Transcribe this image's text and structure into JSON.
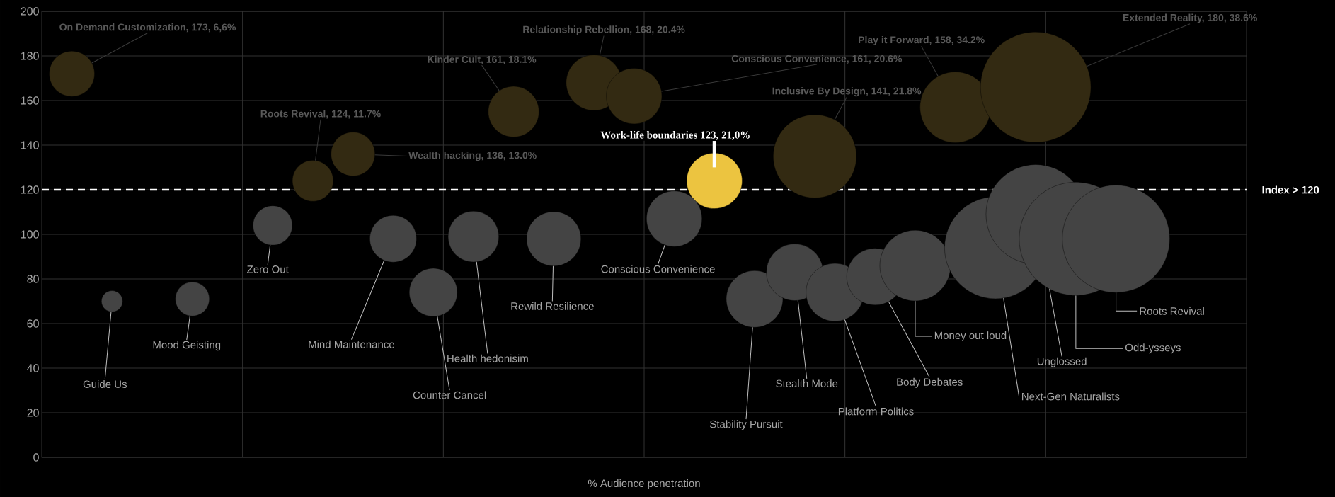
{
  "chart_data": {
    "type": "bubble",
    "xlabel": "% Audience penetration",
    "categories": [
      null,
      null,
      null,
      null,
      null,
      null,
      null,
      null,
      null,
      null,
      null,
      null,
      null,
      null,
      null,
      null,
      null,
      null,
      null,
      null,
      null,
      null,
      null,
      null,
      null,
      null,
      null,
      null,
      null,
      null,
      null,
      null,
      null,
      null,
      null,
      null,
      null,
      null,
      null,
      null,
      null,
      null,
      null,
      null,
      null,
      null,
      null,
      null,
      null,
      null,
      null,
      null,
      null,
      null,
      null,
      null,
      null,
      null,
      null,
      null
    ],
    "ylim": [
      0,
      200
    ],
    "yticks": [
      0,
      20,
      40,
      60,
      80,
      100,
      120,
      140,
      160,
      180,
      200
    ],
    "grid": true,
    "tick_labels": "y",
    "series": [
      {
        "color": "#332a12",
        "values": [
          null,
          172,
          null,
          null,
          null,
          null,
          null,
          null,
          null,
          null,
          null,
          null,
          null,
          124,
          null,
          136,
          null,
          null,
          null,
          null,
          null,
          null,
          null,
          155,
          null,
          null,
          null,
          168,
          null,
          162,
          null,
          null,
          null,
          null,
          null,
          null,
          null,
          null,
          135,
          null,
          null,
          null,
          null,
          null,
          null,
          157,
          null,
          null,
          null,
          166,
          null,
          null,
          null,
          null,
          null,
          null,
          null,
          null,
          null,
          null
        ],
        "sizes": [
          null,
          0.16,
          null,
          null,
          null,
          null,
          null,
          null,
          null,
          null,
          null,
          null,
          null,
          0.13,
          null,
          0.15,
          null,
          null,
          null,
          null,
          null,
          null,
          null,
          0.2,
          null,
          null,
          null,
          0.24,
          null,
          0.24,
          null,
          null,
          null,
          null,
          null,
          null,
          null,
          null,
          0.54,
          null,
          null,
          null,
          null,
          null,
          null,
          0.39,
          null,
          null,
          null,
          0.95,
          null,
          null,
          null,
          null,
          null,
          null,
          null,
          null,
          null,
          null
        ],
        "value_labels": [
          null,
          "On Demand Customization, 173, 6,6%",
          null,
          null,
          null,
          null,
          null,
          null,
          null,
          null,
          null,
          null,
          null,
          "Roots Revival, 124, 11.7%",
          null,
          "Wealth hacking, 136, 13.0%",
          null,
          null,
          null,
          null,
          null,
          null,
          null,
          "Kinder Cult, 161, 18.1%",
          null,
          null,
          null,
          "Relationship Rebellion, 168, 20.4%",
          null,
          "Conscious Convenience, 161, 20.6%",
          null,
          null,
          null,
          null,
          null,
          null,
          null,
          null,
          "Inclusive By Design, 141, 21.8%",
          null,
          null,
          null,
          null,
          null,
          null,
          "Play it Forward, 158, 34.2%",
          null,
          null,
          null,
          "Extended Reality, 180, 38.6%",
          null,
          null,
          null,
          null,
          null,
          null,
          null,
          null,
          null,
          null
        ]
      },
      {
        "color": "#ecc440",
        "values": [
          null,
          null,
          null,
          null,
          null,
          null,
          null,
          null,
          null,
          null,
          null,
          null,
          null,
          null,
          null,
          null,
          null,
          null,
          null,
          null,
          null,
          null,
          null,
          null,
          null,
          null,
          null,
          null,
          null,
          null,
          null,
          null,
          null,
          124,
          null,
          null,
          null,
          null,
          null,
          null,
          null,
          null,
          null,
          null,
          null,
          null,
          null,
          null,
          null,
          null,
          null,
          null,
          null,
          null,
          null,
          null,
          null,
          null,
          null,
          null
        ],
        "sizes": [
          null,
          null,
          null,
          null,
          null,
          null,
          null,
          null,
          null,
          null,
          null,
          null,
          null,
          null,
          null,
          null,
          null,
          null,
          null,
          null,
          null,
          null,
          null,
          null,
          null,
          null,
          null,
          null,
          null,
          null,
          null,
          null,
          null,
          0.24,
          null,
          null,
          null,
          null,
          null,
          null,
          null,
          null,
          null,
          null,
          null,
          null,
          null,
          null,
          null,
          null,
          null,
          null,
          null,
          null,
          null,
          null,
          null,
          null,
          null,
          null
        ],
        "value_labels": [
          null,
          null,
          null,
          null,
          null,
          null,
          null,
          null,
          null,
          null,
          null,
          null,
          null,
          null,
          null,
          null,
          null,
          null,
          null,
          null,
          null,
          null,
          null,
          null,
          null,
          null,
          null,
          null,
          null,
          null,
          null,
          null,
          null,
          "Work-life boundaries 123, 21,0%",
          null,
          null,
          null,
          null,
          null,
          null,
          null,
          null,
          null,
          null,
          null,
          null,
          null,
          null,
          null,
          null,
          null,
          null,
          null,
          null,
          null,
          null,
          null,
          null,
          null,
          null
        ]
      },
      {
        "color": "#444444",
        "values": [
          null,
          null,
          null,
          70,
          null,
          null,
          null,
          71,
          null,
          null,
          null,
          104,
          null,
          null,
          null,
          null,
          null,
          98,
          null,
          74,
          null,
          99,
          null,
          null,
          null,
          98,
          null,
          null,
          null,
          null,
          null,
          107,
          null,
          null,
          null,
          71,
          null,
          83,
          null,
          74,
          null,
          81,
          null,
          86,
          null,
          null,
          null,
          94,
          null,
          109,
          null,
          98,
          null,
          98,
          null,
          null,
          null,
          null,
          null,
          null
        ],
        "sizes": [
          null,
          null,
          null,
          0.035,
          null,
          null,
          null,
          0.09,
          null,
          null,
          null,
          0.12,
          null,
          null,
          null,
          null,
          null,
          0.17,
          null,
          0.18,
          null,
          0.2,
          null,
          null,
          null,
          0.23,
          null,
          null,
          null,
          null,
          null,
          0.24,
          null,
          null,
          null,
          0.25,
          null,
          0.25,
          null,
          0.26,
          null,
          0.25,
          null,
          0.39,
          null,
          null,
          null,
          0.81,
          null,
          0.77,
          null,
          1,
          null,
          0.9,
          null,
          null,
          null,
          null,
          null,
          null
        ],
        "value_labels": [
          null,
          null,
          null,
          "Guide Us",
          null,
          null,
          null,
          "Mood Geisting",
          null,
          null,
          null,
          "Zero Out",
          null,
          null,
          null,
          null,
          null,
          "Mind Maintenance",
          null,
          "Counter Cancel",
          null,
          "Health hedonisim",
          null,
          null,
          null,
          "Rewild Resilience",
          null,
          null,
          null,
          null,
          null,
          "Conscious Convenience",
          null,
          null,
          null,
          "Stability Pursuit",
          null,
          "Stealth Mode",
          null,
          "Platform Politics",
          null,
          "Body Debates",
          null,
          "Money out loud",
          null,
          null,
          null,
          "Next-Gen Naturalists",
          null,
          "Unglossed",
          null,
          "Odd-ysseys",
          null,
          "Roots Revival",
          null,
          null,
          null,
          null,
          null,
          null
        ]
      }
    ],
    "ref_lines": [
      {
        "axis": "y",
        "value": 120,
        "label": "Index > 120",
        "color": "#ffffff",
        "line_style": "dashed"
      }
    ]
  }
}
